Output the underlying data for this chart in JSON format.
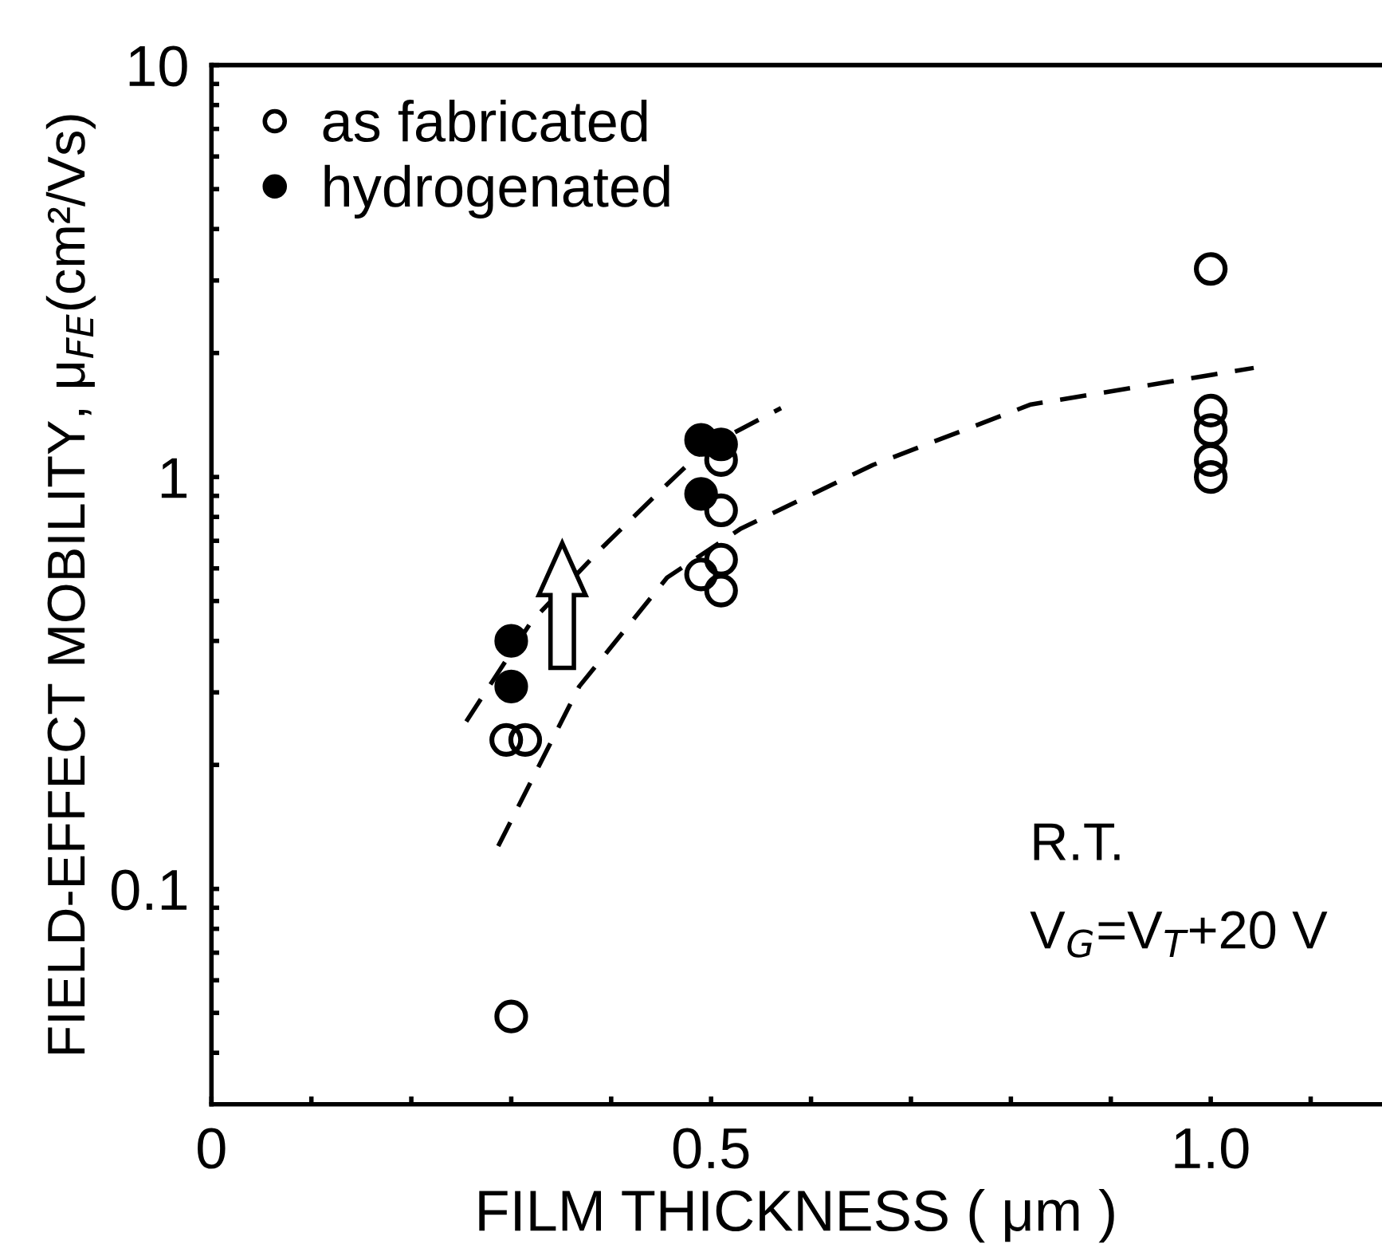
{
  "chart_data": {
    "type": "scatter",
    "xlabel": "FILM THICKNESS ( μm )",
    "ylabel": "FIELD-EFFECT MOBILITY, μ$_{FE}$(cm²/Vs)",
    "log": "y",
    "xlim": [
      0,
      1.17
    ],
    "ylim": [
      0.03,
      10
    ],
    "xticks": [
      0,
      {
        "value": 0.1,
        "label": null
      },
      {
        "value": 0.2,
        "label": null
      },
      {
        "value": 0.3,
        "label": null
      },
      {
        "value": 0.4,
        "label": null
      },
      0.5,
      {
        "value": 0.6,
        "label": null
      },
      {
        "value": 0.7,
        "label": null
      },
      {
        "value": 0.8,
        "label": null
      },
      {
        "value": 0.9,
        "label": null
      },
      {
        "value": 1.0,
        "label": "1.0"
      },
      {
        "value": 1.1,
        "label": null
      }
    ],
    "yticks": [
      {
        "value": 0.04,
        "label": null
      },
      {
        "value": 0.05,
        "label": null
      },
      {
        "value": 0.06,
        "label": null
      },
      {
        "value": 0.07,
        "label": null
      },
      {
        "value": 0.08,
        "label": null
      },
      {
        "value": 0.09,
        "label": null
      },
      0.1,
      {
        "value": 0.2,
        "label": null
      },
      {
        "value": 0.3,
        "label": null
      },
      {
        "value": 0.4,
        "label": null
      },
      {
        "value": 0.5,
        "label": null
      },
      {
        "value": 0.6,
        "label": null
      },
      {
        "value": 0.7,
        "label": null
      },
      {
        "value": 0.8,
        "label": null
      },
      {
        "value": 0.9,
        "label": null
      },
      1,
      {
        "value": 2,
        "label": null
      },
      {
        "value": 3,
        "label": null
      },
      {
        "value": 4,
        "label": null
      },
      {
        "value": 5,
        "label": null
      },
      {
        "value": 6,
        "label": null
      },
      {
        "value": 7,
        "label": null
      },
      {
        "value": 8,
        "label": null
      },
      {
        "value": 9,
        "label": null
      },
      10
    ],
    "grid": false,
    "legend": "top left",
    "marker": "circle",
    "series": [
      {
        "name": "as fabricated",
        "color": "#000000",
        "x": [
          1.0,
          1.0,
          1.0,
          1.0,
          1.0,
          0.49,
          0.51,
          0.51,
          0.51,
          0.51,
          0.295,
          0.314,
          0.3
        ],
        "values": [
          3.2,
          1.45,
          1.3,
          1.1,
          1.0,
          0.58,
          0.53,
          0.63,
          0.83,
          1.1,
          0.23,
          0.23,
          0.049
        ]
      },
      {
        "name": "hydrogenated",
        "color": "#000000",
        "x": [
          0.3,
          0.3,
          0.49,
          0.51,
          0.49
        ],
        "values": [
          0.4,
          0.31,
          1.23,
          1.2,
          0.91
        ]
      },
      {
        "type": "line",
        "color": "#000000",
        "line_style": "dashed",
        "marker": "none",
        "x": [
          0.255,
          0.32,
          0.39,
          0.45,
          0.495,
          0.57
        ],
        "values": [
          0.255,
          0.445,
          0.67,
          0.93,
          1.18,
          1.47
        ]
      },
      {
        "type": "line",
        "color": "#000000",
        "line_style": "dashed",
        "marker": "none",
        "x": [
          0.287,
          0.368,
          0.456,
          0.53,
          0.662,
          0.82,
          1.043
        ],
        "values": [
          0.127,
          0.31,
          0.57,
          0.75,
          1.07,
          1.5,
          1.84
        ]
      }
    ],
    "annotations": [
      "R.T.",
      "V$_{G}$=V$_{T}$+20 V"
    ]
  }
}
